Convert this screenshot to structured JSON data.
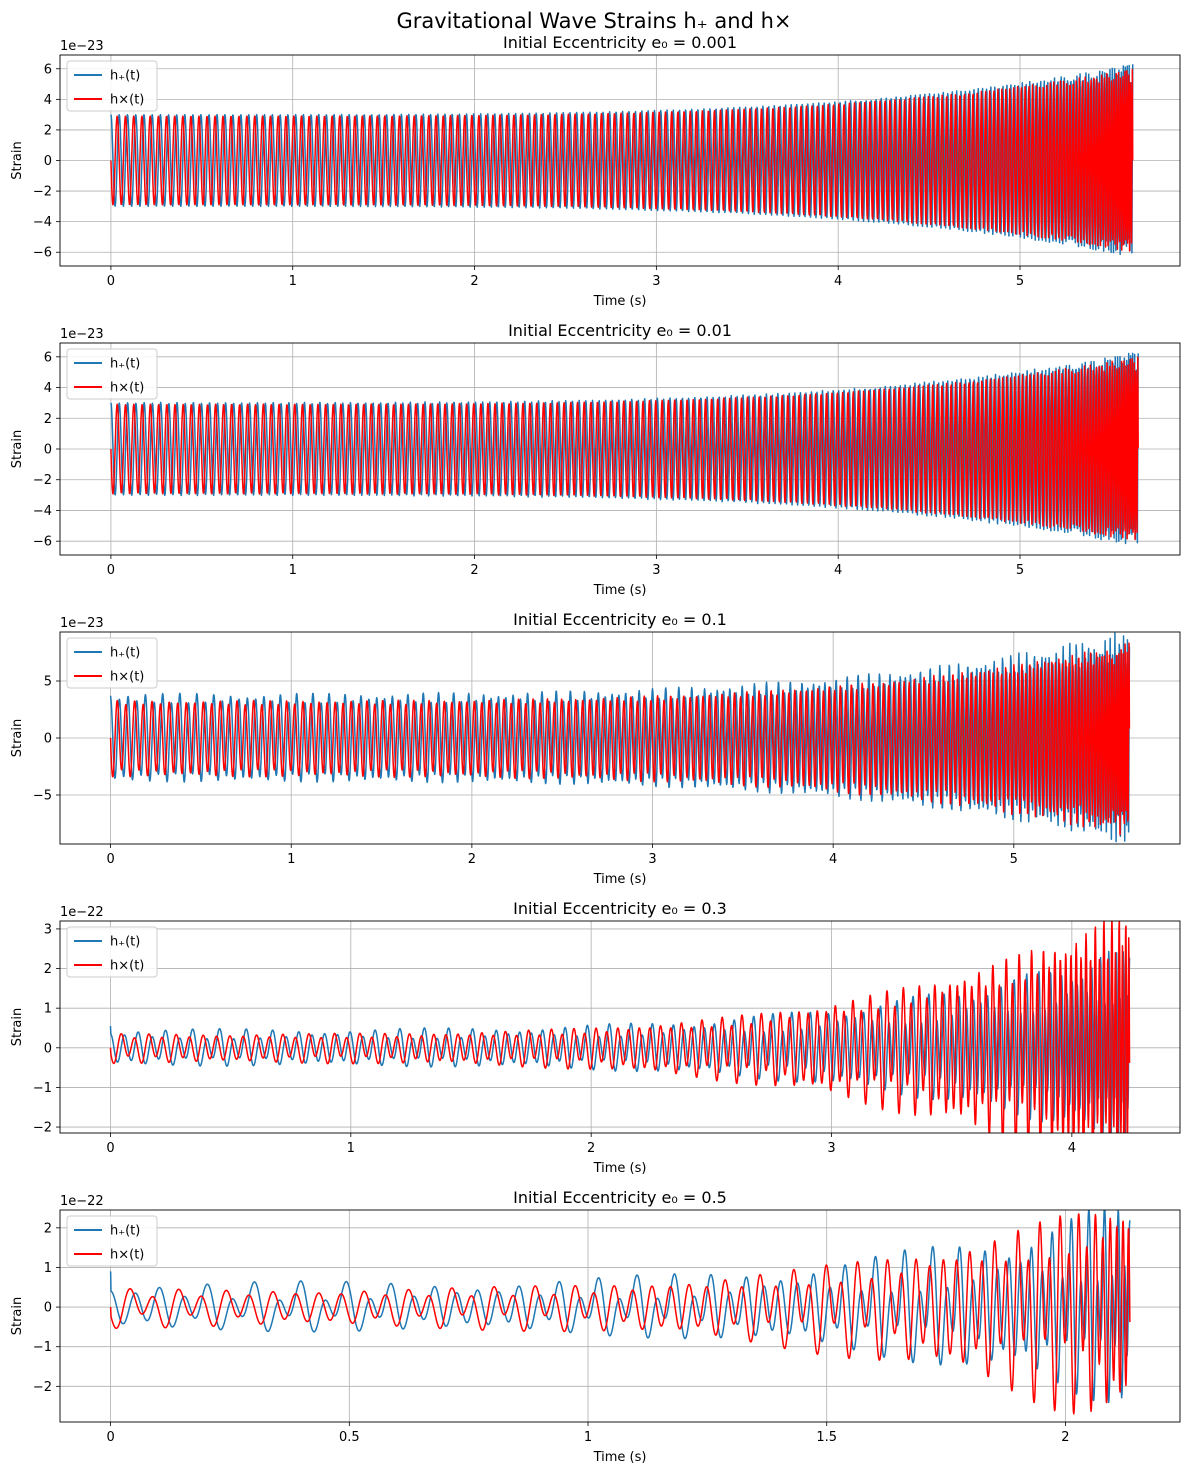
{
  "figure": {
    "title": "Gravitational Wave Strains h₊ and h×"
  },
  "colors": {
    "h_plus": "#1f77b4",
    "h_cross": "#ff0000",
    "grid": "#b0b0b0"
  },
  "chart_data": [
    {
      "type": "line",
      "title": "Initial Eccentricity e₀ = 0.001",
      "xlabel": "Time (s)",
      "ylabel": "Strain",
      "scale_label": "1e−23",
      "xlim": [
        -0.28,
        5.88
      ],
      "ylim": [
        -6.9,
        6.9
      ],
      "xticks": [
        0,
        1,
        2,
        3,
        4,
        5
      ],
      "yticks": [
        -6,
        -4,
        -2,
        0,
        2,
        4,
        6
      ],
      "grid": true,
      "legend": "upper left",
      "series": [
        {
          "name": "h₊(t)",
          "color": "#1f77b4",
          "t_end": 5.62,
          "amp_start": 3.0,
          "amp_end": 6.3,
          "cycles": 185,
          "ecc": 0.001,
          "start_value": 3.0
        },
        {
          "name": "h×(t)",
          "color": "#ff0000",
          "t_end": 5.62,
          "amp_start": 2.9,
          "amp_end": 6.0,
          "cycles": 185,
          "ecc": 0.001,
          "start_value": 0.0
        }
      ]
    },
    {
      "type": "line",
      "title": "Initial Eccentricity e₀ = 0.01",
      "xlabel": "Time (s)",
      "ylabel": "Strain",
      "scale_label": "1e−23",
      "xlim": [
        -0.28,
        5.88
      ],
      "ylim": [
        -6.9,
        6.9
      ],
      "xticks": [
        0,
        1,
        2,
        3,
        4,
        5
      ],
      "yticks": [
        -6,
        -4,
        -2,
        0,
        2,
        4,
        6
      ],
      "grid": true,
      "legend": "upper left",
      "series": [
        {
          "name": "h₊(t)",
          "color": "#1f77b4",
          "t_end": 5.65,
          "amp_start": 3.0,
          "amp_end": 6.3,
          "cycles": 185,
          "ecc": 0.01,
          "start_value": 3.0
        },
        {
          "name": "h×(t)",
          "color": "#ff0000",
          "t_end": 5.65,
          "amp_start": 2.9,
          "amp_end": 6.0,
          "cycles": 185,
          "ecc": 0.01,
          "start_value": 0.0
        }
      ]
    },
    {
      "type": "line",
      "title": "Initial Eccentricity e₀ = 0.1",
      "xlabel": "Time (s)",
      "ylabel": "Strain",
      "scale_label": "1e−23",
      "xlim": [
        -0.28,
        5.92
      ],
      "ylim": [
        -9.3,
        9.3
      ],
      "xticks": [
        0,
        1,
        2,
        3,
        4,
        5
      ],
      "yticks": [
        -5,
        0,
        5
      ],
      "grid": true,
      "legend": "upper left",
      "series": [
        {
          "name": "h₊(t)",
          "color": "#1f77b4",
          "t_end": 5.64,
          "amp_start": 3.5,
          "amp_end": 8.5,
          "cycles": 175,
          "ecc": 0.1,
          "start_value": 3.7
        },
        {
          "name": "h×(t)",
          "color": "#ff0000",
          "t_end": 5.64,
          "amp_start": 3.1,
          "amp_end": 8.0,
          "cycles": 175,
          "ecc": 0.1,
          "start_value": 0.0
        }
      ]
    },
    {
      "type": "line",
      "title": "Initial Eccentricity e₀ = 0.3",
      "xlabel": "Time (s)",
      "ylabel": "Strain",
      "scale_label": "1e−22",
      "xlim": [
        -0.21,
        4.45
      ],
      "ylim": [
        -2.15,
        3.2
      ],
      "xticks": [
        0,
        1,
        2,
        3,
        4
      ],
      "yticks": [
        -2,
        -1,
        0,
        1,
        2,
        3
      ],
      "grid": true,
      "legend": "upper left",
      "series": [
        {
          "name": "h₊(t)",
          "color": "#1f77b4",
          "t_end": 4.24,
          "amp_start": 0.35,
          "amp_end": 1.9,
          "cycles": 110,
          "ecc": 0.3,
          "start_value": 0.55
        },
        {
          "name": "h×(t)",
          "color": "#ff0000",
          "t_end": 4.24,
          "amp_start": 0.3,
          "amp_end": 3.0,
          "cycles": 110,
          "ecc": 0.3,
          "start_value": 0.0
        }
      ]
    },
    {
      "type": "line",
      "title": "Initial Eccentricity e₀ = 0.5",
      "xlabel": "Time (s)",
      "ylabel": "Strain",
      "scale_label": "1e−22",
      "xlim": [
        -0.106,
        2.24
      ],
      "ylim": [
        -2.9,
        2.45
      ],
      "xticks": [
        0.0,
        0.5,
        1.0,
        1.5,
        2.0
      ],
      "yticks": [
        -2,
        -1,
        0,
        1,
        2
      ],
      "grid": true,
      "legend": "upper left",
      "series": [
        {
          "name": "h₊(t)",
          "color": "#1f77b4",
          "t_end": 2.135,
          "amp_start": 0.4,
          "amp_end": 1.7,
          "cycles": 62,
          "ecc": 0.5,
          "start_value": 0.9
        },
        {
          "name": "h×(t)",
          "color": "#ff0000",
          "t_end": 2.135,
          "amp_start": 0.35,
          "amp_end": 2.2,
          "cycles": 62,
          "ecc": 0.5,
          "start_value": 0.0
        }
      ]
    }
  ]
}
